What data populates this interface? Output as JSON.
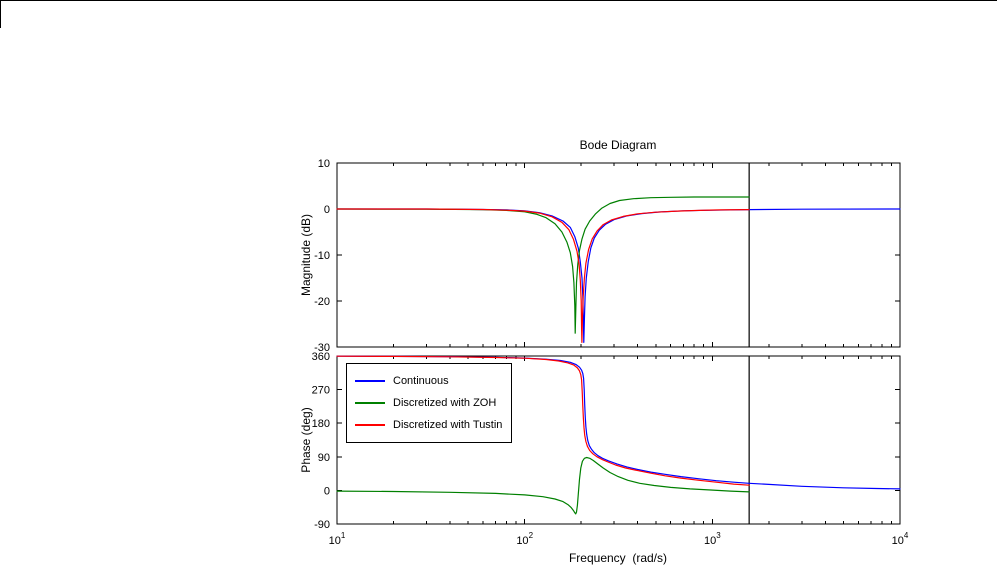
{
  "figure": {
    "background": "#ffffff",
    "axes_color": "#000000"
  },
  "legend": {
    "position": "upper-left-of-phase-plot",
    "items": [
      {
        "label": "Continuous",
        "color": "#0000ff"
      },
      {
        "label": "Discretized with ZOH",
        "color": "#008000"
      },
      {
        "label": "Discretized with Tustin",
        "color": "#ff0000"
      }
    ]
  },
  "chart_data": [
    {
      "type": "line",
      "id": "magnitude-plot",
      "title": "Bode Diagram",
      "ylabel": "Magnitude (dB)",
      "x_scale": "log",
      "x_range": [
        10,
        10000
      ],
      "x_ticks": [
        10,
        100,
        1000,
        10000
      ],
      "ylim": [
        -30,
        10
      ],
      "y_ticks": [
        10,
        0,
        -10,
        -20,
        -30
      ],
      "grid": false,
      "nyquist_vline_x": 1571,
      "series": [
        {
          "name": "Continuous",
          "color": "#0000ff",
          "points": [
            [
              10,
              0
            ],
            [
              30,
              0
            ],
            [
              60,
              -0.1
            ],
            [
              80,
              -0.2
            ],
            [
              100,
              -0.4
            ],
            [
              120,
              -0.8
            ],
            [
              140,
              -1.5
            ],
            [
              160,
              -2.6
            ],
            [
              175,
              -4.0
            ],
            [
              185,
              -6.0
            ],
            [
              193,
              -8.5
            ],
            [
              198,
              -11.5
            ],
            [
              202,
              -15
            ],
            [
              204,
              -19
            ],
            [
              205.5,
              -24
            ],
            [
              206.5,
              -29
            ],
            [
              208,
              -24
            ],
            [
              210,
              -19
            ],
            [
              213,
              -15
            ],
            [
              218,
              -11.5
            ],
            [
              225,
              -8.5
            ],
            [
              235,
              -6.3
            ],
            [
              250,
              -4.6
            ],
            [
              270,
              -3.3
            ],
            [
              300,
              -2.3
            ],
            [
              350,
              -1.5
            ],
            [
              420,
              -1.0
            ],
            [
              520,
              -0.65
            ],
            [
              700,
              -0.4
            ],
            [
              1000,
              -0.25
            ],
            [
              1571,
              -0.12
            ],
            [
              3000,
              -0.05
            ],
            [
              10000,
              0
            ]
          ]
        },
        {
          "name": "Discretized with ZOH",
          "color": "#008000",
          "points": [
            [
              10,
              0
            ],
            [
              30,
              -0.05
            ],
            [
              60,
              -0.15
            ],
            [
              80,
              -0.3
            ],
            [
              100,
              -0.6
            ],
            [
              115,
              -1.1
            ],
            [
              130,
              -1.9
            ],
            [
              145,
              -3.2
            ],
            [
              158,
              -5.0
            ],
            [
              168,
              -7.2
            ],
            [
              175,
              -9.5
            ],
            [
              180,
              -12.5
            ],
            [
              183,
              -16
            ],
            [
              185,
              -21
            ],
            [
              186,
              -27
            ],
            [
              187.5,
              -21
            ],
            [
              189,
              -16
            ],
            [
              192,
              -12
            ],
            [
              196,
              -9.0
            ],
            [
              202,
              -6.5
            ],
            [
              210,
              -4.4
            ],
            [
              222,
              -2.6
            ],
            [
              238,
              -1.1
            ],
            [
              258,
              0.2
            ],
            [
              285,
              1.2
            ],
            [
              320,
              1.85
            ],
            [
              380,
              2.25
            ],
            [
              470,
              2.45
            ],
            [
              600,
              2.55
            ],
            [
              800,
              2.6
            ],
            [
              1100,
              2.6
            ],
            [
              1571,
              2.6
            ]
          ]
        },
        {
          "name": "Discretized with Tustin",
          "color": "#ff0000",
          "points": [
            [
              10,
              0
            ],
            [
              30,
              0
            ],
            [
              60,
              -0.1
            ],
            [
              80,
              -0.25
            ],
            [
              100,
              -0.45
            ],
            [
              120,
              -0.9
            ],
            [
              140,
              -1.7
            ],
            [
              158,
              -2.9
            ],
            [
              172,
              -4.5
            ],
            [
              182,
              -6.6
            ],
            [
              190,
              -9.2
            ],
            [
              195,
              -12
            ],
            [
              198,
              -15.5
            ],
            [
              200,
              -20
            ],
            [
              201,
              -26
            ],
            [
              201.8,
              -29
            ],
            [
              203,
              -24
            ],
            [
              205,
              -19
            ],
            [
              208,
              -15
            ],
            [
              212,
              -11.8
            ],
            [
              219,
              -8.8
            ],
            [
              229,
              -6.5
            ],
            [
              243,
              -4.8
            ],
            [
              262,
              -3.4
            ],
            [
              290,
              -2.4
            ],
            [
              335,
              -1.6
            ],
            [
              400,
              -1.05
            ],
            [
              500,
              -0.7
            ],
            [
              650,
              -0.45
            ],
            [
              850,
              -0.3
            ],
            [
              1100,
              -0.2
            ],
            [
              1571,
              -0.12
            ]
          ]
        }
      ]
    },
    {
      "type": "line",
      "id": "phase-plot",
      "ylabel": "Phase (deg)",
      "xlabel": "Frequency  (rad/s)",
      "x_scale": "log",
      "x_range": [
        10,
        10000
      ],
      "x_ticks": [
        10,
        100,
        1000,
        10000
      ],
      "ylim": [
        -90,
        360
      ],
      "y_ticks": [
        360,
        270,
        180,
        90,
        0,
        -90
      ],
      "grid": false,
      "nyquist_vline_x": 1571,
      "series": [
        {
          "name": "Continuous",
          "color": "#0000ff",
          "points": [
            [
              10,
              359.5
            ],
            [
              20,
              359
            ],
            [
              40,
              358
            ],
            [
              70,
              356.5
            ],
            [
              100,
              354.5
            ],
            [
              130,
              351.5
            ],
            [
              155,
              348
            ],
            [
              175,
              343
            ],
            [
              188,
              337
            ],
            [
              196,
              330
            ],
            [
              201,
              322
            ],
            [
              204,
              313
            ],
            [
              206,
              300
            ],
            [
              207.5,
              270
            ],
            [
              209,
              230
            ],
            [
              210.5,
              195
            ],
            [
              212,
              170
            ],
            [
              214,
              150
            ],
            [
              217,
              133
            ],
            [
              221,
              120
            ],
            [
              227,
              110
            ],
            [
              235,
              101
            ],
            [
              246,
              93
            ],
            [
              260,
              86
            ],
            [
              280,
              79
            ],
            [
              310,
              71
            ],
            [
              350,
              63
            ],
            [
              400,
              56
            ],
            [
              470,
              49
            ],
            [
              560,
              43
            ],
            [
              680,
              37
            ],
            [
              850,
              31
            ],
            [
              1050,
              26
            ],
            [
              1300,
              22
            ],
            [
              1571,
              19
            ],
            [
              2000,
              16
            ],
            [
              3000,
              11
            ],
            [
              5000,
              7
            ],
            [
              7500,
              5
            ],
            [
              10000,
              4
            ]
          ]
        },
        {
          "name": "Discretized with ZOH",
          "color": "#008000",
          "points": [
            [
              10,
              -2
            ],
            [
              20,
              -3
            ],
            [
              40,
              -5
            ],
            [
              70,
              -8
            ],
            [
              100,
              -12
            ],
            [
              125,
              -17
            ],
            [
              145,
              -23
            ],
            [
              160,
              -30
            ],
            [
              170,
              -38
            ],
            [
              177,
              -46
            ],
            [
              182,
              -54
            ],
            [
              185,
              -60
            ],
            [
              187,
              -63
            ],
            [
              189,
              -58
            ],
            [
              191,
              -40
            ],
            [
              193,
              -10
            ],
            [
              196,
              30
            ],
            [
              199,
              60
            ],
            [
              203,
              78
            ],
            [
              208,
              86
            ],
            [
              214,
              88
            ],
            [
              222,
              86
            ],
            [
              232,
              80
            ],
            [
              245,
              71
            ],
            [
              262,
              60
            ],
            [
              285,
              48
            ],
            [
              315,
              37
            ],
            [
              355,
              27
            ],
            [
              410,
              19
            ],
            [
              490,
              13
            ],
            [
              600,
              8
            ],
            [
              760,
              4
            ],
            [
              980,
              1
            ],
            [
              1250,
              -2
            ],
            [
              1571,
              -4
            ]
          ]
        },
        {
          "name": "Discretized with Tustin",
          "color": "#ff0000",
          "points": [
            [
              10,
              359.5
            ],
            [
              20,
              359
            ],
            [
              40,
              357.8
            ],
            [
              70,
              356
            ],
            [
              100,
              354
            ],
            [
              130,
              350.5
            ],
            [
              152,
              346.5
            ],
            [
              170,
              341.5
            ],
            [
              183,
              335.5
            ],
            [
              191,
              328
            ],
            [
              196,
              320
            ],
            [
              199,
              310
            ],
            [
              201,
              296
            ],
            [
              202.5,
              265
            ],
            [
              204,
              225
            ],
            [
              205.5,
              192
            ],
            [
              207,
              168
            ],
            [
              209,
              148
            ],
            [
              212,
              131
            ],
            [
              216,
              118
            ],
            [
              222,
              107
            ],
            [
              231,
              98
            ],
            [
              243,
              90
            ],
            [
              258,
              83
            ],
            [
              278,
              76
            ],
            [
              305,
              68
            ],
            [
              345,
              60
            ],
            [
              400,
              53
            ],
            [
              470,
              46
            ],
            [
              560,
              39
            ],
            [
              680,
              33
            ],
            [
              850,
              27
            ],
            [
              1050,
              22
            ],
            [
              1300,
              17
            ],
            [
              1571,
              14
            ]
          ]
        }
      ]
    }
  ]
}
